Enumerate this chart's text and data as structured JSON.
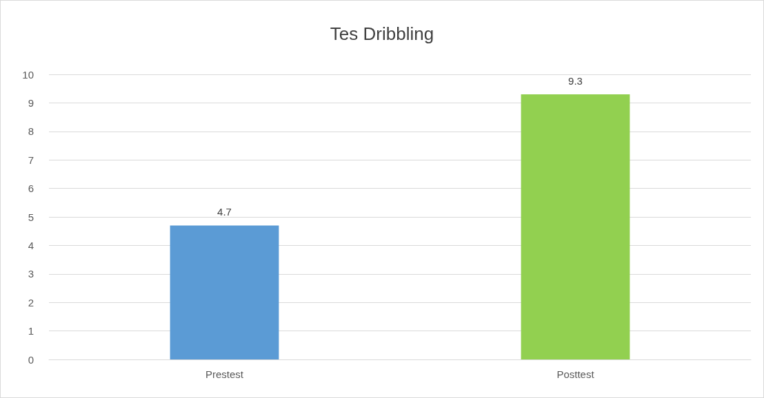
{
  "chart_data": {
    "type": "bar",
    "title": "Tes Dribbling",
    "categories": [
      "Prestest",
      "Posttest"
    ],
    "values": [
      4.7,
      9.3
    ],
    "colors": [
      "#5b9bd5",
      "#92d050"
    ],
    "ylim": [
      0,
      10
    ],
    "yticks": [
      0,
      1,
      2,
      3,
      4,
      5,
      6,
      7,
      8,
      9,
      10
    ],
    "grid": "y",
    "data_labels": true
  }
}
